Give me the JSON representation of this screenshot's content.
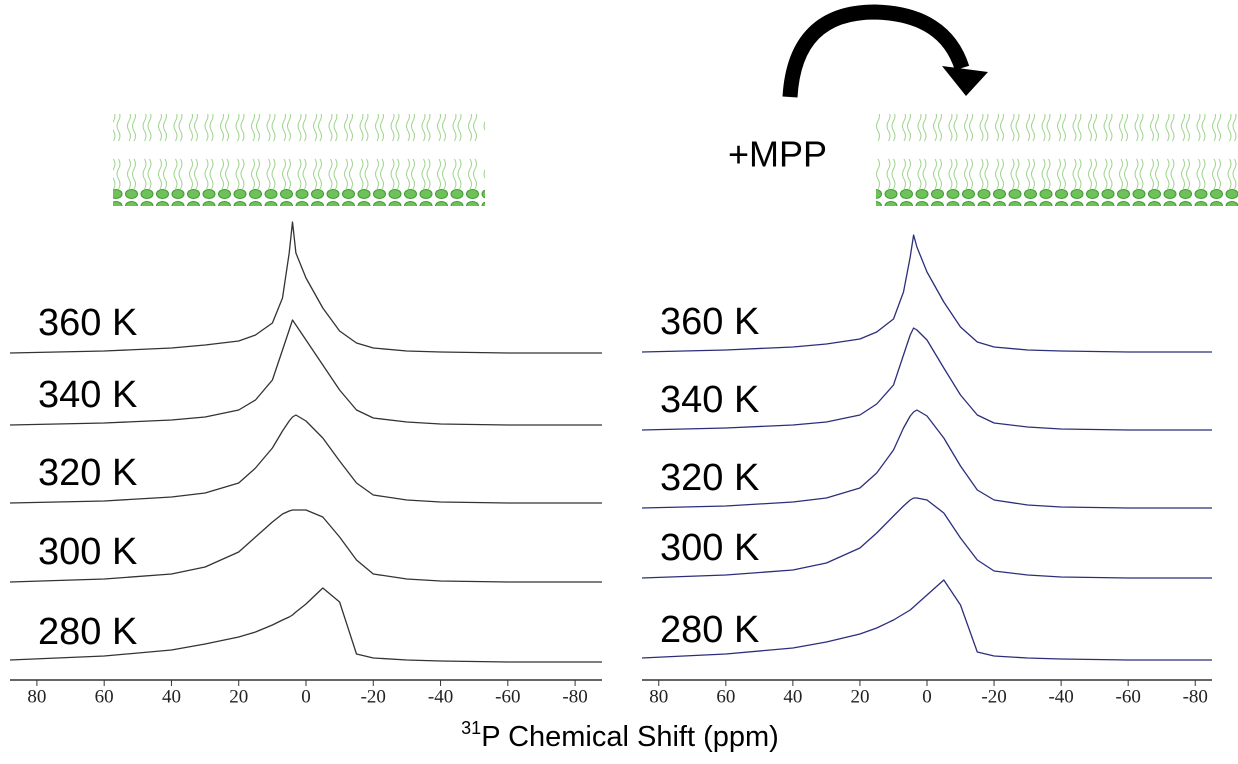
{
  "chart_data": [
    {
      "type": "line",
      "x": [
        88,
        60,
        40,
        30,
        20,
        15,
        10,
        7,
        5,
        4,
        3,
        0,
        -5,
        -10,
        -15,
        -20,
        -30,
        -40,
        -60,
        -88
      ],
      "xlim": [
        88,
        -88
      ],
      "xticks": [
        80,
        60,
        40,
        20,
        0,
        -20,
        -40,
        -60,
        -80
      ],
      "xlabel_superscript": "31",
      "xlabel": "P Chemical Shift (ppm)",
      "series": [
        {
          "name": "360 K",
          "color": "#333333",
          "values": [
            0,
            0.02,
            0.05,
            0.08,
            0.12,
            0.18,
            0.3,
            0.55,
            1.0,
            1.31,
            1.0,
            0.75,
            0.45,
            0.22,
            0.1,
            0.05,
            0.02,
            0.01,
            0,
            0
          ]
        },
        {
          "name": "340 K",
          "color": "#333333",
          "values": [
            0,
            0.02,
            0.05,
            0.08,
            0.15,
            0.25,
            0.45,
            0.75,
            0.95,
            1.05,
            1.0,
            0.85,
            0.6,
            0.35,
            0.15,
            0.07,
            0.03,
            0.01,
            0,
            0
          ]
        },
        {
          "name": "320 K",
          "color": "#333333",
          "values": [
            0,
            0.02,
            0.06,
            0.1,
            0.2,
            0.35,
            0.55,
            0.72,
            0.82,
            0.86,
            0.88,
            0.82,
            0.65,
            0.42,
            0.2,
            0.08,
            0.03,
            0.01,
            0,
            0
          ]
        },
        {
          "name": "300 K",
          "color": "#333333",
          "values": [
            0,
            0.03,
            0.08,
            0.15,
            0.3,
            0.45,
            0.6,
            0.68,
            0.71,
            0.72,
            0.72,
            0.72,
            0.65,
            0.45,
            0.22,
            0.08,
            0.03,
            0.01,
            0,
            0
          ]
        },
        {
          "name": "280 K",
          "color": "#333333",
          "values": [
            0.02,
            0.06,
            0.12,
            0.18,
            0.25,
            0.3,
            0.37,
            0.42,
            0.45,
            0.47,
            0.5,
            0.58,
            0.74,
            0.6,
            0.08,
            0.04,
            0.02,
            0.01,
            0,
            0
          ]
        }
      ]
    },
    {
      "type": "line",
      "x": [
        85,
        60,
        40,
        30,
        20,
        15,
        10,
        7,
        5,
        4,
        3,
        0,
        -5,
        -10,
        -15,
        -20,
        -30,
        -40,
        -60,
        -85
      ],
      "xlim": [
        85,
        -85
      ],
      "xticks": [
        80,
        60,
        40,
        20,
        0,
        -20,
        -40,
        -60,
        -80
      ],
      "annotation": "+MPP",
      "series": [
        {
          "name": "360 K",
          "color": "#2b2f7a",
          "values": [
            0,
            0.02,
            0.05,
            0.08,
            0.13,
            0.2,
            0.33,
            0.6,
            0.95,
            1.17,
            1.05,
            0.8,
            0.5,
            0.25,
            0.1,
            0.05,
            0.02,
            0.01,
            0,
            0
          ]
        },
        {
          "name": "340 K",
          "color": "#2b2f7a",
          "values": [
            0,
            0.02,
            0.05,
            0.08,
            0.15,
            0.26,
            0.45,
            0.75,
            0.95,
            1.02,
            1.0,
            0.9,
            0.62,
            0.35,
            0.15,
            0.07,
            0.03,
            0.01,
            0,
            0
          ]
        },
        {
          "name": "320 K",
          "color": "#2b2f7a",
          "values": [
            0,
            0.02,
            0.06,
            0.1,
            0.2,
            0.35,
            0.58,
            0.8,
            0.92,
            0.96,
            0.98,
            0.92,
            0.7,
            0.42,
            0.18,
            0.08,
            0.03,
            0.01,
            0,
            0
          ]
        },
        {
          "name": "300 K",
          "color": "#2b2f7a",
          "values": [
            0,
            0.03,
            0.08,
            0.15,
            0.3,
            0.45,
            0.62,
            0.72,
            0.78,
            0.8,
            0.8,
            0.78,
            0.65,
            0.4,
            0.18,
            0.07,
            0.03,
            0.01,
            0,
            0
          ]
        },
        {
          "name": "280 K",
          "color": "#2b2f7a",
          "values": [
            0.02,
            0.06,
            0.12,
            0.18,
            0.26,
            0.32,
            0.4,
            0.46,
            0.5,
            0.53,
            0.56,
            0.65,
            0.8,
            0.55,
            0.08,
            0.04,
            0.02,
            0.01,
            0,
            0
          ]
        }
      ]
    }
  ]
}
